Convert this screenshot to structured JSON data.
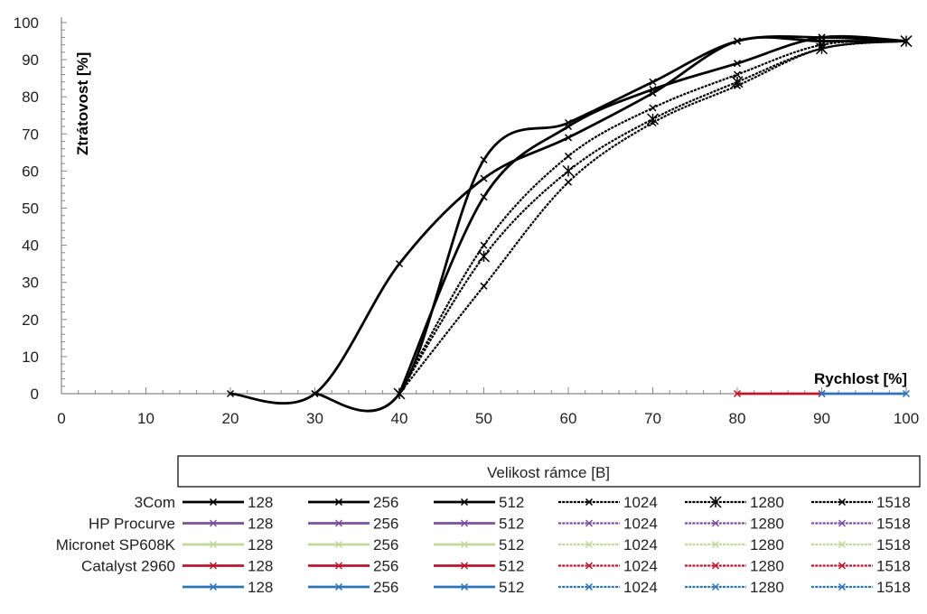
{
  "chart_data": {
    "type": "line",
    "xlabel": "Rychlost [%]",
    "ylabel": "Ztrátovost [%]",
    "xlim": [
      0,
      100
    ],
    "ylim": [
      0,
      100
    ],
    "x_ticks": [
      "0",
      "10",
      "20",
      "30",
      "40",
      "50",
      "60",
      "70",
      "80",
      "90",
      "100"
    ],
    "y_ticks": [
      "0",
      "10",
      "20",
      "30",
      "40",
      "50",
      "60",
      "70",
      "80",
      "90",
      "100"
    ],
    "legend": {
      "title": "Velikost rámce [B]",
      "position": "bottom",
      "frame_sizes": [
        "128",
        "256",
        "512",
        "1024",
        "1280",
        "1518"
      ],
      "devices": [
        "3Com",
        "HP Procurve",
        "Micronet SP608K",
        "Catalyst 2960",
        ""
      ]
    },
    "colors": {
      "3Com": "#000000",
      "HP Procurve": "#7b4f9d",
      "Micronet SP608K": "#c3d69b",
      "Catalyst 2960": "#c0142b",
      "blue": "#2e75b6"
    },
    "series": [
      {
        "device": "3Com",
        "frame": "128",
        "x": [
          20,
          30,
          40,
          50,
          60,
          70,
          80,
          90,
          100
        ],
        "y": [
          0,
          0,
          35,
          58,
          69,
          81,
          95,
          95,
          95
        ]
      },
      {
        "device": "3Com",
        "frame": "256",
        "x": [
          30,
          40,
          50,
          60,
          70,
          80,
          90,
          100
        ],
        "y": [
          0,
          0,
          63,
          73,
          84,
          95,
          96,
          95
        ]
      },
      {
        "device": "3Com",
        "frame": "512",
        "x": [
          40,
          50,
          60,
          70,
          80,
          90,
          100
        ],
        "y": [
          0,
          53,
          72,
          82,
          89,
          96,
          95
        ]
      },
      {
        "device": "3Com",
        "frame": "1024",
        "x": [
          40,
          50,
          60,
          70,
          80,
          90,
          100
        ],
        "y": [
          0,
          40,
          64,
          77,
          86,
          94,
          95
        ]
      },
      {
        "device": "3Com",
        "frame": "1280",
        "x": [
          40,
          50,
          60,
          70,
          80,
          90,
          100
        ],
        "y": [
          0,
          37,
          60,
          74,
          84,
          93,
          95
        ]
      },
      {
        "device": "3Com",
        "frame": "1518",
        "x": [
          40,
          50,
          60,
          70,
          80,
          90,
          100
        ],
        "y": [
          0,
          29,
          57,
          73,
          83,
          93,
          95
        ]
      },
      {
        "device": "Catalyst 2960",
        "frame": "128",
        "x": [
          80,
          90
        ],
        "y": [
          0,
          0
        ]
      },
      {
        "device": "",
        "frame": "128",
        "x": [
          90,
          100
        ],
        "y": [
          0,
          0
        ]
      }
    ]
  }
}
